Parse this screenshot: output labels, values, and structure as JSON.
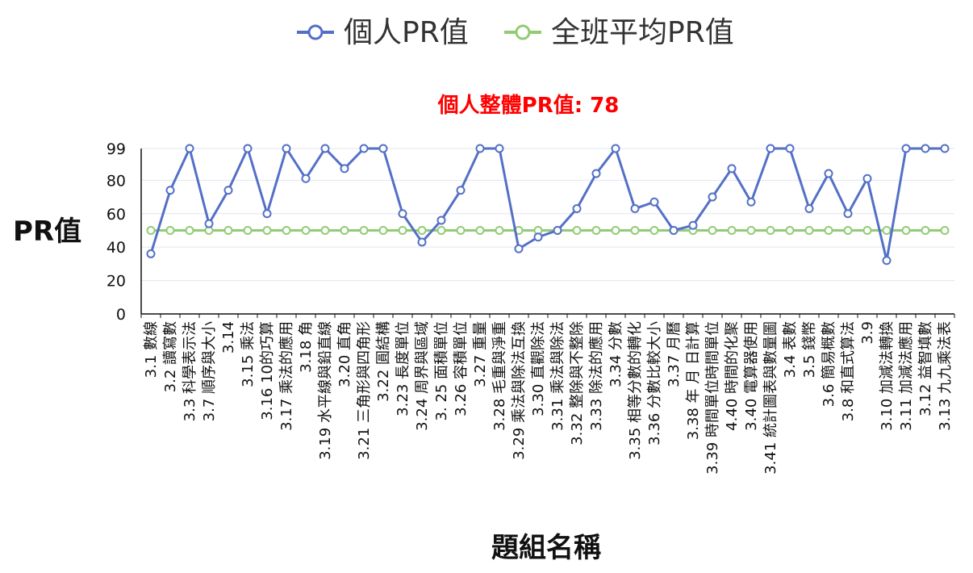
{
  "chart_data": {
    "type": "line",
    "title": "個人整體PR值: 78",
    "ylabel": "PR值",
    "xlabel": "題組名稱",
    "ylim": [
      0,
      99
    ],
    "yticks": [
      0,
      20,
      40,
      60,
      80,
      99
    ],
    "grid": true,
    "legend_position": "top",
    "categories": [
      "3.1 數線",
      "3.2 讀寫數",
      "3.3 科學表示法",
      "3.7 順序與大小",
      "3.14",
      "3.15 乘法",
      "3.16 10的巧算",
      "3.17 乘法的應用",
      "3.18 角",
      "3.19 水平線與鉛直線",
      "3.20 直角",
      "3.21 三角形與四角形",
      "3.22 圓結構",
      "3.23 長度單位",
      "3.24 周界與區域",
      "3. 25 面積單位",
      "3.26 容積單位",
      "3.27 重量",
      "3.28 毛重與淨重",
      "3.29 乘法與除法互換",
      "3.30 直觀除法",
      "3.31 乘法與除法",
      "3.32 整除與不整除",
      "3.33 除法的應用",
      "3.34 分數",
      "3.35 相等分數的轉化",
      "3.36 分數比較大小",
      "3.37 月曆",
      "3.38 年 月 日計算",
      "3.39 時間單位時間單位",
      "4.40 時間的化聚",
      "3.40 電算器使用",
      "3.41 統計圖表與數量圖",
      "3.4 表數",
      "3.5 錢幣",
      "3.6 簡易概數",
      "3.8 和直式算法",
      "3.9",
      "3.10 加減法轉換",
      "3.11 加減法應用",
      "3.12 益智填數",
      "3.13 九九乘法表"
    ],
    "series": [
      {
        "name": "個人PR值",
        "color": "#5470c6",
        "values": [
          36,
          74,
          99,
          54,
          74,
          99,
          60,
          99,
          81,
          99,
          87,
          99,
          99,
          60,
          43,
          56,
          74,
          99,
          99,
          39,
          46,
          50,
          63,
          84,
          99,
          63,
          67,
          50,
          53,
          70,
          87,
          67,
          99,
          99,
          63,
          84,
          60,
          81,
          32,
          99,
          99,
          99
        ]
      },
      {
        "name": "全班平均PR值",
        "color": "#91cc75",
        "values": [
          50,
          50,
          50,
          50,
          50,
          50,
          50,
          50,
          50,
          50,
          50,
          50,
          50,
          50,
          50,
          50,
          50,
          50,
          50,
          50,
          50,
          50,
          50,
          50,
          50,
          50,
          50,
          50,
          50,
          50,
          50,
          50,
          50,
          50,
          50,
          50,
          50,
          50,
          50,
          50,
          50,
          50
        ]
      }
    ]
  }
}
